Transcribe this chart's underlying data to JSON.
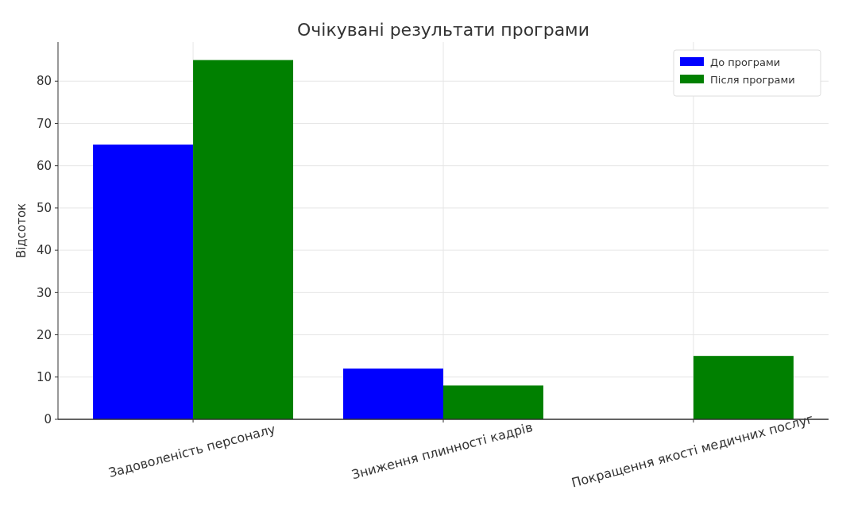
{
  "chart_data": {
    "type": "bar",
    "title": "Очікувані результати програми",
    "ylabel": "Відсоток",
    "categories": [
      "Задоволеність персоналу",
      "Зниження плинності кадрів",
      "Покращення якості медичних послуг"
    ],
    "series": [
      {
        "name": "До програми",
        "color": "#0000ff",
        "values": [
          65,
          12,
          0
        ]
      },
      {
        "name": "Після програми",
        "color": "#008000",
        "values": [
          85,
          8,
          15
        ]
      }
    ],
    "ylim": [
      0,
      89.25
    ],
    "yticks": [
      0,
      10,
      20,
      30,
      40,
      50,
      60,
      70,
      80
    ],
    "grid": true,
    "legend": "top right"
  }
}
